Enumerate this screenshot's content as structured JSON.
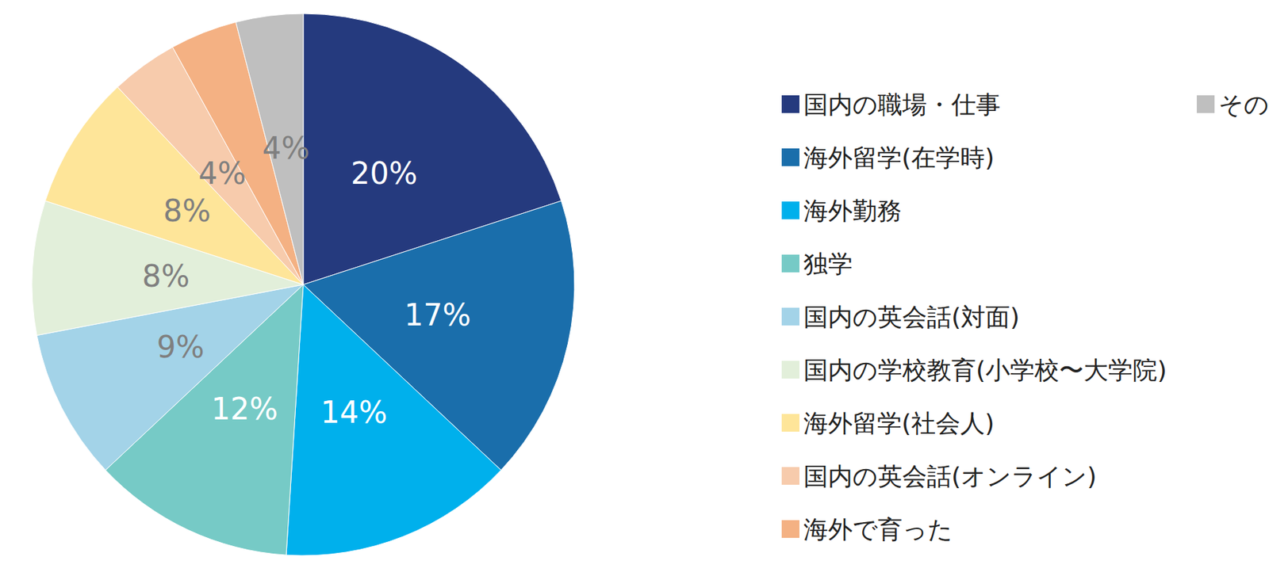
{
  "chart_data": {
    "type": "pie",
    "categories": [
      "国内の職場・仕事",
      "海外留学(在学時)",
      "海外勤務",
      "独学",
      "国内の英会話(対面)",
      "国内の学校教育(小学校〜大学院)",
      "海外留学(社会人)",
      "国内の英会話(オンライン)",
      "海外で育った",
      "その他"
    ],
    "values": [
      20,
      17,
      14,
      12,
      9,
      8,
      8,
      4,
      4,
      4
    ],
    "value_labels": [
      "20%",
      "17%",
      "14%",
      "12%",
      "9%",
      "8%",
      "8%",
      "4%",
      "4%",
      "4%"
    ],
    "colors": [
      "#253a7e",
      "#1a6eab",
      "#00b0ec",
      "#76cac6",
      "#a3d3e8",
      "#e2efda",
      "#fee599",
      "#f7cbac",
      "#f4b183",
      "#bfbfbf"
    ],
    "data_labels": true,
    "legend": "right"
  }
}
